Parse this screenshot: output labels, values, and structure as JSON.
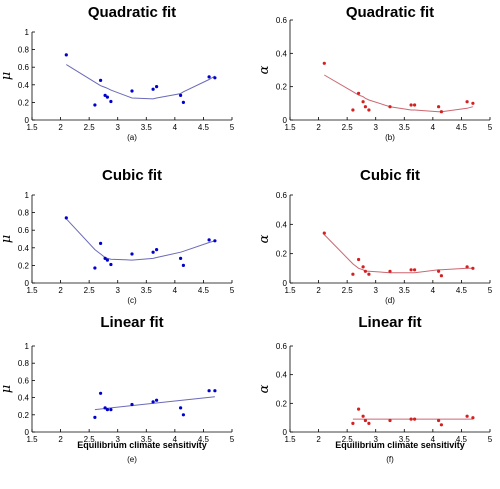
{
  "chart_data": [
    {
      "type": "scatter",
      "title": "Quadratic fit",
      "ylabel": "μ",
      "xlabel": "",
      "caption": "(a)",
      "color": "#0000cc",
      "fit_color": "#6a6ab8",
      "xlim": [
        1.5,
        5
      ],
      "ylim": [
        0,
        1
      ],
      "xticks": [
        "1.5",
        "2",
        "2.5",
        "3",
        "3.5",
        "4",
        "4.5",
        "5"
      ],
      "yticks": [
        "0",
        "0.2",
        "0.4",
        "0.6",
        "0.8",
        "1"
      ],
      "grid": false,
      "points": {
        "x": [
          2.1,
          2.6,
          2.7,
          2.78,
          2.82,
          2.88,
          3.25,
          3.62,
          3.68,
          4.1,
          4.15,
          4.6,
          4.7
        ],
        "y": [
          0.74,
          0.17,
          0.45,
          0.28,
          0.26,
          0.21,
          0.33,
          0.35,
          0.38,
          0.28,
          0.2,
          0.49,
          0.48
        ]
      },
      "fit": {
        "x": [
          2.1,
          2.6,
          2.7,
          2.78,
          2.82,
          2.88,
          3.25,
          3.62,
          3.68,
          4.1,
          4.15,
          4.6,
          4.7
        ],
        "y": [
          0.63,
          0.43,
          0.39,
          0.37,
          0.36,
          0.34,
          0.25,
          0.24,
          0.25,
          0.3,
          0.32,
          0.46,
          0.5
        ]
      }
    },
    {
      "type": "scatter",
      "title": "Quadratic fit",
      "ylabel": "α",
      "xlabel": "",
      "caption": "(b)",
      "color": "#d42020",
      "fit_color": "#cc6670",
      "xlim": [
        1.5,
        5
      ],
      "ylim": [
        0,
        0.6
      ],
      "xticks": [
        "1.5",
        "2",
        "2.5",
        "3",
        "3.5",
        "4",
        "4.5",
        "5"
      ],
      "yticks": [
        "0",
        "0.2",
        "0.4",
        "0.6"
      ],
      "grid": false,
      "points": {
        "x": [
          2.1,
          2.6,
          2.7,
          2.78,
          2.82,
          2.88,
          3.25,
          3.62,
          3.68,
          4.1,
          4.15,
          4.6,
          4.7
        ],
        "y": [
          0.34,
          0.06,
          0.16,
          0.11,
          0.08,
          0.06,
          0.08,
          0.09,
          0.09,
          0.08,
          0.05,
          0.11,
          0.1
        ]
      },
      "fit": {
        "x": [
          2.1,
          2.6,
          2.7,
          2.78,
          2.82,
          2.88,
          3.25,
          3.62,
          3.68,
          4.1,
          4.15,
          4.6,
          4.7
        ],
        "y": [
          0.27,
          0.17,
          0.15,
          0.14,
          0.13,
          0.12,
          0.08,
          0.06,
          0.06,
          0.05,
          0.05,
          0.07,
          0.08
        ]
      }
    },
    {
      "type": "scatter",
      "title": "Cubic fit",
      "ylabel": "μ",
      "xlabel": "",
      "caption": "(c)",
      "color": "#0000cc",
      "fit_color": "#6a6ab8",
      "xlim": [
        1.5,
        5
      ],
      "ylim": [
        0,
        1
      ],
      "xticks": [
        "1.5",
        "2",
        "2.5",
        "3",
        "3.5",
        "4",
        "4.5",
        "5"
      ],
      "yticks": [
        "0",
        "0.2",
        "0.4",
        "0.6",
        "0.8",
        "1"
      ],
      "grid": false,
      "points": {
        "x": [
          2.1,
          2.6,
          2.7,
          2.78,
          2.82,
          2.88,
          3.25,
          3.62,
          3.68,
          4.1,
          4.15,
          4.6,
          4.7
        ],
        "y": [
          0.74,
          0.17,
          0.45,
          0.28,
          0.26,
          0.21,
          0.33,
          0.35,
          0.38,
          0.28,
          0.2,
          0.49,
          0.48
        ]
      },
      "fit": {
        "x": [
          2.1,
          2.6,
          2.7,
          2.78,
          2.82,
          2.88,
          3.25,
          3.62,
          3.68,
          4.1,
          4.15,
          4.6,
          4.7
        ],
        "y": [
          0.73,
          0.38,
          0.33,
          0.29,
          0.28,
          0.27,
          0.26,
          0.28,
          0.29,
          0.35,
          0.36,
          0.46,
          0.48
        ]
      }
    },
    {
      "type": "scatter",
      "title": "Cubic fit",
      "ylabel": "α",
      "xlabel": "",
      "caption": "(d)",
      "color": "#d42020",
      "fit_color": "#cc6670",
      "xlim": [
        1.5,
        5
      ],
      "ylim": [
        0,
        0.6
      ],
      "xticks": [
        "1.5",
        "2",
        "2.5",
        "3",
        "3.5",
        "4",
        "4.5",
        "5"
      ],
      "yticks": [
        "0",
        "0.2",
        "0.4",
        "0.6"
      ],
      "grid": false,
      "points": {
        "x": [
          2.1,
          2.6,
          2.7,
          2.78,
          2.82,
          2.88,
          3.25,
          3.62,
          3.68,
          4.1,
          4.15,
          4.6,
          4.7
        ],
        "y": [
          0.34,
          0.06,
          0.16,
          0.11,
          0.08,
          0.06,
          0.08,
          0.09,
          0.09,
          0.08,
          0.05,
          0.11,
          0.1
        ]
      },
      "fit": {
        "x": [
          2.1,
          2.6,
          2.7,
          2.78,
          2.82,
          2.88,
          3.25,
          3.62,
          3.68,
          4.1,
          4.15,
          4.6,
          4.7
        ],
        "y": [
          0.33,
          0.13,
          0.1,
          0.09,
          0.08,
          0.08,
          0.07,
          0.07,
          0.07,
          0.09,
          0.09,
          0.1,
          0.1
        ]
      }
    },
    {
      "type": "scatter",
      "title": "Linear fit",
      "ylabel": "μ",
      "xlabel": "Equilibrium climate sensitivity",
      "caption": "(e)",
      "color": "#0000cc",
      "fit_color": "#6a6ab8",
      "xlim": [
        1.5,
        5
      ],
      "ylim": [
        0,
        1
      ],
      "xticks": [
        "1.5",
        "2",
        "2.5",
        "3",
        "3.5",
        "4",
        "4.5",
        "5"
      ],
      "yticks": [
        "0",
        "0.2",
        "0.4",
        "0.6",
        "0.8",
        "1"
      ],
      "grid": false,
      "points": {
        "x": [
          2.6,
          2.7,
          2.78,
          2.82,
          2.88,
          3.25,
          3.62,
          3.68,
          4.1,
          4.15,
          4.6,
          4.7
        ],
        "y": [
          0.17,
          0.45,
          0.28,
          0.26,
          0.26,
          0.32,
          0.35,
          0.37,
          0.28,
          0.2,
          0.48,
          0.48
        ]
      },
      "fit": {
        "x": [
          2.6,
          4.7
        ],
        "y": [
          0.26,
          0.41
        ]
      }
    },
    {
      "type": "scatter",
      "title": "Linear fit",
      "ylabel": "α",
      "xlabel": "Equilibrium climate sensitivity",
      "caption": "(f)",
      "color": "#d42020",
      "fit_color": "#cc6670",
      "xlim": [
        1.5,
        5
      ],
      "ylim": [
        0,
        0.6
      ],
      "xticks": [
        "1.5",
        "2",
        "2.5",
        "3",
        "3.5",
        "4",
        "4.5",
        "5"
      ],
      "yticks": [
        "0",
        "0.2",
        "0.4",
        "0.6"
      ],
      "grid": false,
      "points": {
        "x": [
          2.6,
          2.7,
          2.78,
          2.82,
          2.88,
          3.25,
          3.62,
          3.68,
          4.1,
          4.15,
          4.6,
          4.7
        ],
        "y": [
          0.06,
          0.16,
          0.11,
          0.08,
          0.06,
          0.08,
          0.09,
          0.09,
          0.08,
          0.05,
          0.11,
          0.1
        ]
      },
      "fit": {
        "x": [
          2.6,
          4.7
        ],
        "y": [
          0.09,
          0.09
        ]
      }
    }
  ]
}
